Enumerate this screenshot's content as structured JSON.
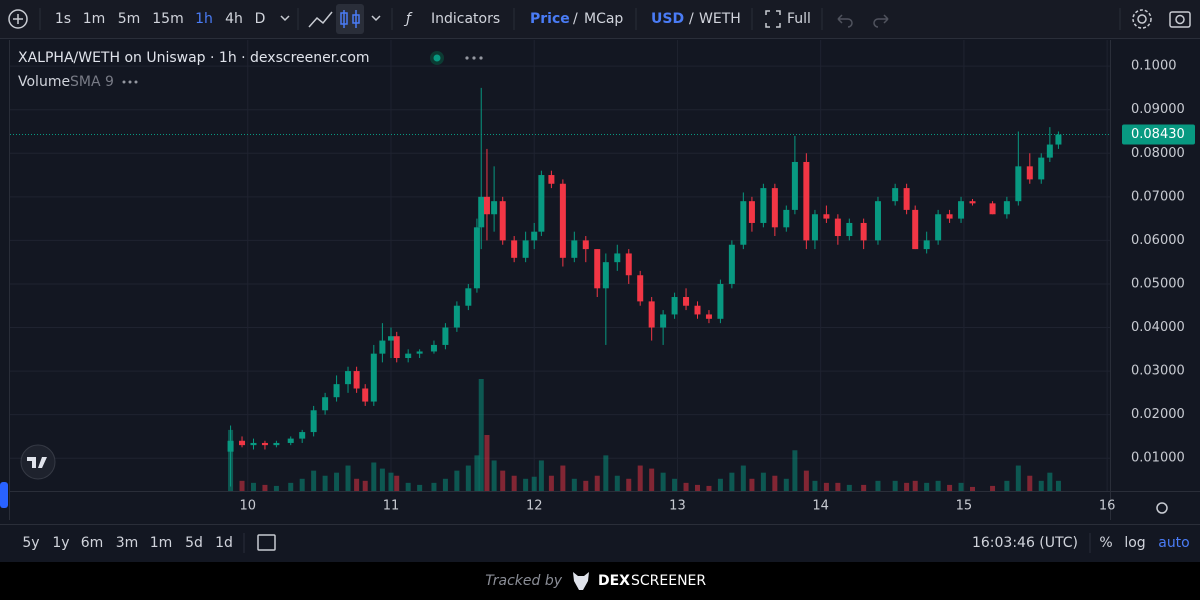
{
  "toolbar": {
    "intervals": [
      "1s",
      "1m",
      "5m",
      "15m",
      "1h",
      "4h",
      "D"
    ],
    "indicators": "Indicators",
    "price_toggle": {
      "active": "Price",
      "separator": "/",
      "other": "MCap"
    },
    "currency_toggle": {
      "active": "USD",
      "separator": "/",
      "other": "WETH"
    },
    "full": "Full"
  },
  "chart_data": {
    "type": "candlestick",
    "title": "XALPHA/WETH on Uniswap · 1h · dexscreener.com",
    "volume_label": "Volume",
    "volume_sma": "SMA 9",
    "up_color": "#089981",
    "down_color": "#f23645",
    "grid": true,
    "x": [
      9.88,
      9.96,
      10.04,
      10.12,
      10.2,
      10.3,
      10.38,
      10.46,
      10.54,
      10.62,
      10.7,
      10.76,
      10.82,
      10.88,
      10.94,
      11.0,
      11.04,
      11.12,
      11.2,
      11.3,
      11.38,
      11.46,
      11.54,
      11.6,
      11.63,
      11.67,
      11.72,
      11.78,
      11.86,
      11.94,
      12.0,
      12.05,
      12.12,
      12.2,
      12.28,
      12.36,
      12.44,
      12.5,
      12.58,
      12.66,
      12.74,
      12.82,
      12.9,
      12.98,
      13.06,
      13.14,
      13.22,
      13.3,
      13.38,
      13.46,
      13.52,
      13.6,
      13.68,
      13.76,
      13.82,
      13.9,
      13.96,
      14.04,
      14.12,
      14.2,
      14.3,
      14.4,
      14.52,
      14.6,
      14.66,
      14.74,
      14.82,
      14.9,
      14.98,
      15.06,
      15.2,
      15.3,
      15.38,
      15.46,
      15.54,
      15.6,
      15.66
    ],
    "open": [
      0.0115,
      0.014,
      0.013,
      0.0135,
      0.013,
      0.0135,
      0.0145,
      0.016,
      0.021,
      0.024,
      0.027,
      0.03,
      0.026,
      0.023,
      0.034,
      0.037,
      0.038,
      0.033,
      0.034,
      0.0345,
      0.036,
      0.04,
      0.045,
      0.049,
      0.063,
      0.07,
      0.066,
      0.069,
      0.06,
      0.056,
      0.06,
      0.062,
      0.075,
      0.073,
      0.056,
      0.06,
      0.058,
      0.049,
      0.055,
      0.057,
      0.052,
      0.046,
      0.04,
      0.043,
      0.047,
      0.045,
      0.043,
      0.042,
      0.05,
      0.059,
      0.069,
      0.064,
      0.072,
      0.063,
      0.067,
      0.078,
      0.06,
      0.066,
      0.065,
      0.061,
      0.064,
      0.06,
      0.069,
      0.072,
      0.067,
      0.058,
      0.06,
      0.066,
      0.065,
      0.069,
      0.0685,
      0.066,
      0.069,
      0.077,
      0.074,
      0.079,
      0.082
    ],
    "high": [
      0.0175,
      0.015,
      0.0145,
      0.014,
      0.014,
      0.015,
      0.0165,
      0.022,
      0.025,
      0.029,
      0.031,
      0.031,
      0.027,
      0.036,
      0.041,
      0.04,
      0.039,
      0.035,
      0.035,
      0.037,
      0.041,
      0.046,
      0.05,
      0.065,
      0.095,
      0.081,
      0.077,
      0.07,
      0.061,
      0.062,
      0.064,
      0.076,
      0.076,
      0.074,
      0.062,
      0.061,
      0.058,
      0.057,
      0.059,
      0.058,
      0.053,
      0.047,
      0.044,
      0.048,
      0.049,
      0.046,
      0.044,
      0.051,
      0.06,
      0.071,
      0.07,
      0.073,
      0.073,
      0.068,
      0.084,
      0.08,
      0.067,
      0.068,
      0.066,
      0.065,
      0.065,
      0.07,
      0.073,
      0.073,
      0.068,
      0.062,
      0.067,
      0.067,
      0.07,
      0.0695,
      0.069,
      0.07,
      0.085,
      0.08,
      0.08,
      0.086,
      0.085
    ],
    "low": [
      0.0035,
      0.0125,
      0.012,
      0.012,
      0.0125,
      0.013,
      0.0135,
      0.015,
      0.02,
      0.023,
      0.025,
      0.025,
      0.022,
      0.022,
      0.032,
      0.033,
      0.032,
      0.032,
      0.033,
      0.034,
      0.035,
      0.039,
      0.044,
      0.048,
      0.058,
      0.06,
      0.062,
      0.059,
      0.055,
      0.055,
      0.058,
      0.061,
      0.072,
      0.054,
      0.055,
      0.055,
      0.047,
      0.036,
      0.053,
      0.05,
      0.045,
      0.037,
      0.036,
      0.042,
      0.044,
      0.042,
      0.041,
      0.041,
      0.049,
      0.058,
      0.062,
      0.063,
      0.061,
      0.062,
      0.066,
      0.058,
      0.058,
      0.064,
      0.059,
      0.06,
      0.058,
      0.059,
      0.068,
      0.066,
      0.058,
      0.057,
      0.059,
      0.064,
      0.064,
      0.068,
      0.066,
      0.065,
      0.068,
      0.073,
      0.073,
      0.078,
      0.081
    ],
    "close": [
      0.014,
      0.013,
      0.0135,
      0.013,
      0.0135,
      0.0145,
      0.016,
      0.021,
      0.024,
      0.027,
      0.03,
      0.026,
      0.023,
      0.034,
      0.037,
      0.038,
      0.033,
      0.034,
      0.0345,
      0.036,
      0.04,
      0.045,
      0.049,
      0.063,
      0.07,
      0.066,
      0.069,
      0.06,
      0.056,
      0.06,
      0.062,
      0.075,
      0.073,
      0.056,
      0.06,
      0.058,
      0.049,
      0.055,
      0.057,
      0.052,
      0.046,
      0.04,
      0.043,
      0.047,
      0.045,
      0.043,
      0.042,
      0.05,
      0.059,
      0.069,
      0.064,
      0.072,
      0.063,
      0.067,
      0.078,
      0.06,
      0.066,
      0.065,
      0.061,
      0.064,
      0.06,
      0.069,
      0.072,
      0.067,
      0.058,
      0.06,
      0.066,
      0.065,
      0.069,
      0.0685,
      0.066,
      0.069,
      0.077,
      0.074,
      0.079,
      0.082,
      0.0843
    ],
    "volume": [
      60,
      10,
      8,
      6,
      5,
      8,
      12,
      20,
      15,
      18,
      25,
      12,
      10,
      28,
      22,
      18,
      15,
      8,
      6,
      8,
      12,
      20,
      25,
      35,
      110,
      55,
      30,
      20,
      15,
      12,
      14,
      30,
      15,
      25,
      12,
      10,
      15,
      35,
      15,
      12,
      25,
      22,
      18,
      12,
      8,
      6,
      5,
      12,
      18,
      25,
      12,
      18,
      15,
      12,
      40,
      20,
      10,
      8,
      8,
      6,
      6,
      10,
      10,
      8,
      10,
      8,
      10,
      6,
      8,
      4,
      5,
      10,
      25,
      15,
      10,
      18,
      10
    ],
    "xlim": [
      8.34,
      16.02
    ],
    "xticks": [
      10,
      11,
      12,
      13,
      14,
      15,
      16
    ],
    "ylim": [
      0.0027,
      0.106
    ],
    "yticks": [
      {
        "value": 0.01,
        "label": "0.01000"
      },
      {
        "value": 0.02,
        "label": "0.02000"
      },
      {
        "value": 0.03,
        "label": "0.03000"
      },
      {
        "value": 0.04,
        "label": "0.04000"
      },
      {
        "value": 0.05,
        "label": "0.05000"
      },
      {
        "value": 0.06,
        "label": "0.06000"
      },
      {
        "value": 0.07,
        "label": "0.07000"
      },
      {
        "value": 0.08,
        "label": "0.08000"
      },
      {
        "value": 0.09,
        "label": "0.09000"
      },
      {
        "value": 0.1,
        "label": "0.1000"
      }
    ],
    "last_price": {
      "value": 0.0843,
      "label": "0.08430"
    }
  },
  "footer": {
    "ranges": [
      "5y",
      "1y",
      "6m",
      "3m",
      "1m",
      "5d",
      "1d"
    ],
    "clock": "16:03:46 (UTC)",
    "percent": "%",
    "log": "log",
    "auto": "auto"
  },
  "branding": {
    "tracked_by": "Tracked by",
    "dex": "DEX",
    "screener": "SCREENER"
  }
}
